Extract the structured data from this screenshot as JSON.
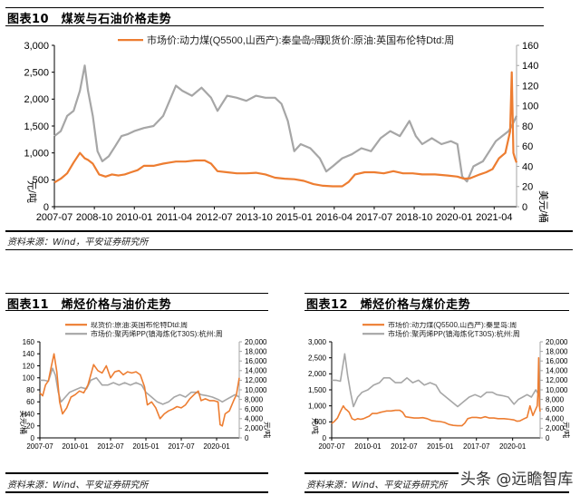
{
  "figures": [
    {
      "id": "fig10",
      "title": "图表10　煤炭与石油价格走势",
      "source": "资料来源：Wind，平安证券研究所"
    },
    {
      "id": "fig11",
      "title": "图表11　烯烃价格与油价走势",
      "source": "资料来源：Wind、平安证券研究所"
    },
    {
      "id": "fig12",
      "title": "图表12　烯烃价格与煤价走势",
      "source": "资料来源：Wind、平安证券研究所"
    }
  ],
  "watermark": "头条 @远瞻智库",
  "colors": {
    "orange": "#ED7D31",
    "gray": "#A6A6A6",
    "axis": "#000000"
  },
  "chart_data": [
    {
      "type": "line",
      "title": "图表10 煤炭与石油价格走势",
      "x_ticks": [
        "2007-07",
        "2008-10",
        "2010-01",
        "2011-04",
        "2012-07",
        "2013-10",
        "2015-01",
        "2016-04",
        "2017-07",
        "2018-10",
        "2020-01",
        "2021-04"
      ],
      "x_range": [
        2007.5,
        2021.95
      ],
      "left_axis": {
        "label": "元/吨",
        "ticks": [
          "0",
          "500",
          "1,000",
          "1,500",
          "2,000",
          "2,500",
          "3,000"
        ],
        "range": [
          0,
          3000
        ]
      },
      "right_axis": {
        "label": "美元/桶",
        "ticks": [
          "0",
          "20",
          "40",
          "60",
          "80",
          "100",
          "120",
          "140",
          "160"
        ],
        "range": [
          0,
          160
        ]
      },
      "legend_position": "top",
      "grid": false,
      "series": [
        {
          "name": "市场价:动力煤(Q5500,山西产):秦皇岛:周",
          "axis": "left",
          "color": "#ED7D31",
          "x": [
            2007.5,
            2007.7,
            2007.9,
            2008.1,
            2008.3,
            2008.45,
            2008.55,
            2008.7,
            2008.9,
            2009.1,
            2009.3,
            2009.5,
            2009.7,
            2009.9,
            2010.1,
            2010.3,
            2010.6,
            2010.9,
            2011.1,
            2011.3,
            2011.6,
            2011.9,
            2012.2,
            2012.4,
            2012.6,
            2012.9,
            2013.2,
            2013.5,
            2013.8,
            2014.1,
            2014.4,
            2014.7,
            2015.0,
            2015.3,
            2015.6,
            2015.9,
            2016.2,
            2016.5,
            2016.7,
            2016.9,
            2017.2,
            2017.5,
            2017.8,
            2018.1,
            2018.4,
            2018.7,
            2019.0,
            2019.4,
            2019.8,
            2020.1,
            2020.3,
            2020.5,
            2020.8,
            2021.0,
            2021.2,
            2021.4,
            2021.6,
            2021.75,
            2021.8,
            2021.85,
            2021.9,
            2021.95
          ],
          "values": [
            450,
            520,
            620,
            820,
            1000,
            900,
            870,
            800,
            600,
            560,
            600,
            580,
            600,
            640,
            680,
            760,
            760,
            800,
            820,
            840,
            840,
            860,
            860,
            800,
            660,
            640,
            620,
            620,
            630,
            600,
            540,
            520,
            510,
            480,
            420,
            390,
            380,
            380,
            460,
            600,
            640,
            640,
            620,
            660,
            620,
            620,
            600,
            600,
            580,
            560,
            520,
            530,
            600,
            640,
            700,
            900,
            1000,
            1400,
            2500,
            1000,
            900,
            820
          ]
        },
        {
          "name": "现货价:原油:英国布伦特Dtd:周",
          "axis": "right",
          "color": "#A6A6A6",
          "x": [
            2007.5,
            2007.7,
            2007.9,
            2008.1,
            2008.3,
            2008.45,
            2008.55,
            2008.7,
            2008.85,
            2009.0,
            2009.2,
            2009.4,
            2009.6,
            2009.8,
            2010.0,
            2010.3,
            2010.6,
            2010.9,
            2011.1,
            2011.3,
            2011.5,
            2011.8,
            2012.1,
            2012.4,
            2012.6,
            2012.9,
            2013.2,
            2013.5,
            2013.8,
            2014.1,
            2014.4,
            2014.6,
            2014.8,
            2015.0,
            2015.2,
            2015.5,
            2015.8,
            2016.0,
            2016.2,
            2016.5,
            2016.8,
            2017.1,
            2017.4,
            2017.7,
            2018.0,
            2018.3,
            2018.6,
            2018.8,
            2019.0,
            2019.3,
            2019.6,
            2019.9,
            2020.1,
            2020.25,
            2020.4,
            2020.6,
            2020.9,
            2021.1,
            2021.3,
            2021.5,
            2021.7,
            2021.8,
            2021.95
          ],
          "values": [
            70,
            75,
            90,
            95,
            115,
            140,
            115,
            90,
            55,
            45,
            50,
            60,
            70,
            72,
            75,
            78,
            80,
            90,
            105,
            120,
            115,
            110,
            118,
            108,
            95,
            110,
            108,
            105,
            110,
            108,
            108,
            102,
            85,
            55,
            62,
            58,
            48,
            35,
            40,
            48,
            52,
            58,
            55,
            68,
            75,
            70,
            85,
            70,
            62,
            68,
            62,
            65,
            62,
            30,
            25,
            40,
            45,
            55,
            65,
            70,
            75,
            80,
            90
          ]
        }
      ]
    },
    {
      "type": "line",
      "title": "图表11 烯烃价格与油价走势",
      "x_ticks": [
        "2007-07",
        "2010-01",
        "2012-07",
        "2015-01",
        "2017-07",
        "2020-01"
      ],
      "x_range": [
        2007.5,
        2021.6
      ],
      "left_axis": {
        "label": "美元/桶",
        "ticks": [
          "0",
          "20",
          "40",
          "60",
          "80",
          "100",
          "120",
          "140",
          "160"
        ],
        "range": [
          0,
          160
        ]
      },
      "right_axis": {
        "label": "元/吨",
        "ticks": [
          "0",
          "2,000",
          "4,000",
          "6,000",
          "8,000",
          "10,000",
          "12,000",
          "14,000",
          "16,000",
          "18,000",
          "20,000"
        ],
        "range": [
          0,
          20000
        ]
      },
      "legend_position": "top",
      "grid": false,
      "series": [
        {
          "name": "现货价:原油:英国布伦特Dtd:周",
          "axis": "left",
          "color": "#ED7D31",
          "x": [
            2007.5,
            2007.7,
            2007.9,
            2008.1,
            2008.3,
            2008.5,
            2008.7,
            2008.9,
            2009.1,
            2009.4,
            2009.7,
            2010.0,
            2010.3,
            2010.6,
            2010.9,
            2011.1,
            2011.3,
            2011.6,
            2011.9,
            2012.2,
            2012.5,
            2012.8,
            2013.1,
            2013.4,
            2013.7,
            2014.0,
            2014.3,
            2014.6,
            2014.9,
            2015.1,
            2015.4,
            2015.7,
            2016.0,
            2016.3,
            2016.6,
            2016.9,
            2017.2,
            2017.5,
            2017.8,
            2018.1,
            2018.4,
            2018.7,
            2018.9,
            2019.2,
            2019.5,
            2019.8,
            2020.1,
            2020.25,
            2020.4,
            2020.6,
            2020.9,
            2021.2,
            2021.4,
            2021.6
          ],
          "values": [
            75,
            70,
            88,
            95,
            118,
            140,
            110,
            60,
            40,
            50,
            68,
            72,
            78,
            75,
            88,
            105,
            122,
            112,
            108,
            120,
            100,
            110,
            112,
            105,
            110,
            108,
            110,
            105,
            85,
            55,
            60,
            50,
            32,
            40,
            45,
            48,
            52,
            50,
            55,
            65,
            72,
            78,
            62,
            65,
            62,
            62,
            60,
            22,
            20,
            40,
            45,
            62,
            72,
            100
          ]
        },
        {
          "name": "市场价:聚丙烯PP(镇海炼化T30S):杭州:周",
          "axis": "right",
          "color": "#A6A6A6",
          "x": [
            2007.5,
            2007.8,
            2008.1,
            2008.4,
            2008.6,
            2008.8,
            2009.0,
            2009.3,
            2009.6,
            2010.0,
            2010.4,
            2010.8,
            2011.1,
            2011.5,
            2011.9,
            2012.3,
            2012.7,
            2013.1,
            2013.5,
            2013.9,
            2014.3,
            2014.7,
            2015.0,
            2015.4,
            2015.8,
            2016.2,
            2016.6,
            2017.0,
            2017.4,
            2017.8,
            2018.2,
            2018.6,
            2018.9,
            2019.3,
            2019.7,
            2020.1,
            2020.4,
            2020.7,
            2021.0,
            2021.3,
            2021.6
          ],
          "values": [
            12000,
            12000,
            11800,
            14500,
            13000,
            9500,
            7500,
            8500,
            9500,
            10000,
            10500,
            10200,
            12000,
            12500,
            11000,
            11000,
            11500,
            11000,
            11500,
            11000,
            11500,
            11000,
            9500,
            8500,
            7500,
            7000,
            7500,
            8500,
            9000,
            8500,
            9500,
            9500,
            9000,
            8800,
            8500,
            8000,
            7500,
            8000,
            8500,
            9000,
            8500
          ]
        }
      ]
    },
    {
      "type": "line",
      "title": "图表12 烯烃价格与煤价走势",
      "x_ticks": [
        "2007-07",
        "2010-01",
        "2012-07",
        "2015-01",
        "2017-07",
        "2020-01"
      ],
      "x_range": [
        2007.5,
        2021.9
      ],
      "left_axis": {
        "label": "元/吨",
        "ticks": [
          "0",
          "500",
          "1,000",
          "1,500",
          "2,000",
          "2,500",
          "3,000"
        ],
        "range": [
          0,
          3000
        ]
      },
      "right_axis": {
        "label": "元/吨",
        "ticks": [
          "0",
          "2,000",
          "4,000",
          "6,000",
          "8,000",
          "10,000",
          "12,000",
          "14,000",
          "16,000",
          "18,000",
          "20,000"
        ],
        "range": [
          0,
          20000
        ]
      },
      "legend_position": "top",
      "grid": false,
      "series": [
        {
          "name": "市场价:动力煤(Q5500,山西产):秦皇岛:周",
          "axis": "left",
          "color": "#ED7D31",
          "x": [
            2007.5,
            2007.7,
            2007.9,
            2008.1,
            2008.3,
            2008.45,
            2008.55,
            2008.7,
            2008.9,
            2009.1,
            2009.3,
            2009.5,
            2009.7,
            2009.9,
            2010.1,
            2010.3,
            2010.6,
            2010.9,
            2011.1,
            2011.3,
            2011.6,
            2011.9,
            2012.2,
            2012.4,
            2012.6,
            2012.9,
            2013.2,
            2013.5,
            2013.8,
            2014.1,
            2014.4,
            2014.7,
            2015.0,
            2015.3,
            2015.6,
            2015.9,
            2016.2,
            2016.5,
            2016.7,
            2016.9,
            2017.2,
            2017.5,
            2017.8,
            2018.1,
            2018.4,
            2018.7,
            2019.0,
            2019.4,
            2019.8,
            2020.1,
            2020.3,
            2020.5,
            2020.8,
            2021.0,
            2021.2,
            2021.4,
            2021.6,
            2021.7,
            2021.75,
            2021.8,
            2021.85,
            2021.9
          ],
          "values": [
            450,
            520,
            620,
            820,
            1000,
            900,
            870,
            800,
            600,
            560,
            600,
            580,
            600,
            640,
            680,
            760,
            760,
            800,
            820,
            840,
            840,
            860,
            860,
            800,
            660,
            640,
            620,
            620,
            630,
            600,
            540,
            520,
            510,
            480,
            420,
            390,
            380,
            380,
            460,
            600,
            640,
            640,
            620,
            660,
            620,
            620,
            600,
            600,
            580,
            560,
            520,
            530,
            600,
            640,
            1000,
            700,
            900,
            1000,
            1400,
            2500,
            1000,
            820
          ]
        },
        {
          "name": "市场价:聚丙烯PP(镇海炼化T30S):杭州:周",
          "axis": "right",
          "color": "#A6A6A6",
          "x": [
            2007.5,
            2007.8,
            2008.1,
            2008.4,
            2008.6,
            2008.8,
            2009.0,
            2009.3,
            2009.6,
            2010.0,
            2010.4,
            2010.8,
            2011.1,
            2011.5,
            2011.9,
            2012.3,
            2012.7,
            2013.1,
            2013.5,
            2013.9,
            2014.3,
            2014.7,
            2015.0,
            2015.4,
            2015.8,
            2016.2,
            2016.6,
            2017.0,
            2017.4,
            2017.8,
            2018.2,
            2018.6,
            2018.9,
            2019.3,
            2019.7,
            2020.1,
            2020.4,
            2020.7,
            2021.0,
            2021.3,
            2021.6,
            2021.9
          ],
          "values": [
            12000,
            12000,
            11800,
            17500,
            13000,
            9500,
            6500,
            8500,
            9500,
            10000,
            11000,
            11500,
            12500,
            12500,
            11500,
            11500,
            12500,
            11500,
            12000,
            11000,
            11500,
            11000,
            9500,
            8500,
            7500,
            6500,
            7500,
            8500,
            9000,
            8500,
            9500,
            9500,
            9000,
            8800,
            8500,
            7000,
            8000,
            8500,
            9000,
            8500,
            10000,
            8500
          ]
        }
      ]
    }
  ]
}
